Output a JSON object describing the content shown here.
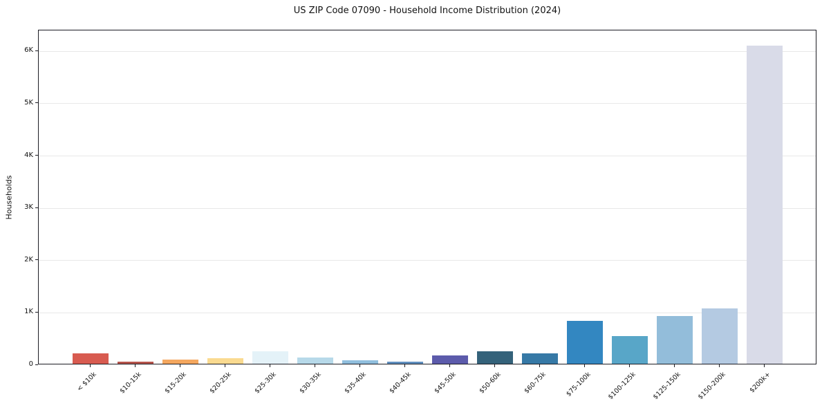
{
  "chart_data": {
    "type": "bar",
    "title": "US ZIP Code 07090 - Household Income Distribution (2024)",
    "xlabel": "",
    "ylabel": "Households",
    "categories": [
      "< $10k",
      "$10-15k",
      "$15-20k",
      "$20-25k",
      "$25-30k",
      "$30-35k",
      "$35-40k",
      "$40-45k",
      "$45-50k",
      "$50-60k",
      "$60-75k",
      "$75-100k",
      "$100-125k",
      "$125-150k",
      "$150-200k",
      "$200k+"
    ],
    "values": [
      200,
      40,
      80,
      105,
      240,
      115,
      70,
      45,
      155,
      240,
      200,
      815,
      535,
      915,
      1055,
      6080
    ],
    "bar_colors": [
      "#d85b50",
      "#b5544b",
      "#f4a75f",
      "#fada90",
      "#e4f2f8",
      "#b7d9e9",
      "#90bedd",
      "#608fbf",
      "#5c5bab",
      "#34627a",
      "#3679a6",
      "#3387c1",
      "#58a6c8",
      "#93bdda",
      "#b4cae2",
      "#d9dbe8"
    ],
    "ytick_values": [
      0,
      1000,
      2000,
      3000,
      4000,
      5000,
      6000
    ],
    "ytick_labels": [
      "0",
      "1K",
      "2K",
      "3K",
      "4K",
      "5K",
      "6K"
    ],
    "ylim": [
      0,
      6400
    ],
    "grid": "horizontal-light",
    "legend": "none",
    "background_color": "#ffffff",
    "spine_color": "#1b1b22",
    "grid_color": "#e8e8e8"
  }
}
